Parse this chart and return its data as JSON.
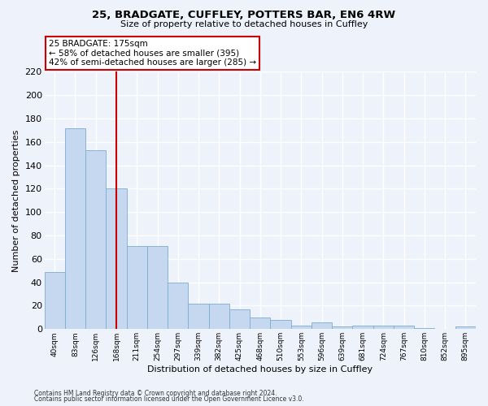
{
  "title": "25, BRADGATE, CUFFLEY, POTTERS BAR, EN6 4RW",
  "subtitle": "Size of property relative to detached houses in Cuffley",
  "xlabel": "Distribution of detached houses by size in Cuffley",
  "ylabel": "Number of detached properties",
  "bar_color": "#c5d8f0",
  "bar_edge_color": "#7aadd4",
  "background_color": "#eef2fb",
  "grid_color": "#ffffff",
  "vline_x": 3,
  "vline_color": "#cc0000",
  "annotation_line1": "25 BRADGATE: 175sqm",
  "annotation_line2": "← 58% of detached houses are smaller (395)",
  "annotation_line3": "42% of semi-detached houses are larger (285) →",
  "annotation_box_color": "#ffffff",
  "annotation_box_edge": "#cc0000",
  "categories": [
    "40sqm",
    "83sqm",
    "126sqm",
    "168sqm",
    "211sqm",
    "254sqm",
    "297sqm",
    "339sqm",
    "382sqm",
    "425sqm",
    "468sqm",
    "510sqm",
    "553sqm",
    "596sqm",
    "639sqm",
    "681sqm",
    "724sqm",
    "767sqm",
    "810sqm",
    "852sqm",
    "895sqm"
  ],
  "values": [
    49,
    172,
    153,
    120,
    71,
    71,
    40,
    22,
    22,
    17,
    10,
    8,
    3,
    6,
    2,
    3,
    3,
    3,
    1,
    0,
    2
  ],
  "ylim": [
    0,
    220
  ],
  "yticks": [
    0,
    20,
    40,
    60,
    80,
    100,
    120,
    140,
    160,
    180,
    200,
    220
  ],
  "footer1": "Contains HM Land Registry data © Crown copyright and database right 2024.",
  "footer2": "Contains public sector information licensed under the Open Government Licence v3.0."
}
